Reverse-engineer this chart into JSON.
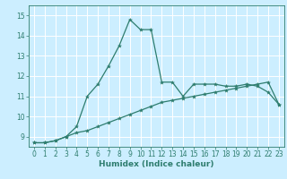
{
  "xlabel": "Humidex (Indice chaleur)",
  "bg_color": "#cceeff",
  "grid_color": "#ffffff",
  "line_color": "#2e7d6e",
  "xlim": [
    -0.5,
    23.5
  ],
  "ylim": [
    8.5,
    15.5
  ],
  "x_ticks": [
    0,
    1,
    2,
    3,
    4,
    5,
    6,
    7,
    8,
    9,
    10,
    11,
    12,
    13,
    14,
    15,
    16,
    17,
    18,
    19,
    20,
    21,
    22,
    23
  ],
  "y_ticks": [
    9,
    10,
    11,
    12,
    13,
    14,
    15
  ],
  "curve1_x": [
    0,
    1,
    2,
    3,
    4,
    5,
    6,
    7,
    8,
    9,
    10,
    11,
    12,
    13,
    14,
    15,
    16,
    17,
    18,
    19,
    20,
    21,
    22,
    23
  ],
  "curve1_y": [
    8.7,
    8.7,
    8.8,
    9.0,
    9.5,
    11.0,
    11.6,
    12.5,
    13.5,
    14.8,
    14.3,
    14.3,
    11.7,
    11.7,
    11.0,
    11.6,
    11.6,
    11.6,
    11.5,
    11.5,
    11.6,
    11.5,
    11.2,
    10.6
  ],
  "curve2_x": [
    0,
    1,
    2,
    3,
    4,
    5,
    6,
    7,
    8,
    9,
    10,
    11,
    12,
    13,
    14,
    15,
    16,
    17,
    18,
    19,
    20,
    21,
    22,
    23
  ],
  "curve2_y": [
    8.7,
    8.7,
    8.8,
    9.0,
    9.2,
    9.3,
    9.5,
    9.7,
    9.9,
    10.1,
    10.3,
    10.5,
    10.7,
    10.8,
    10.9,
    11.0,
    11.1,
    11.2,
    11.3,
    11.4,
    11.5,
    11.6,
    11.7,
    10.6
  ],
  "marker": "*",
  "markersize": 3,
  "linewidth": 0.9,
  "tick_fontsize": 5.5,
  "xlabel_fontsize": 6.5
}
